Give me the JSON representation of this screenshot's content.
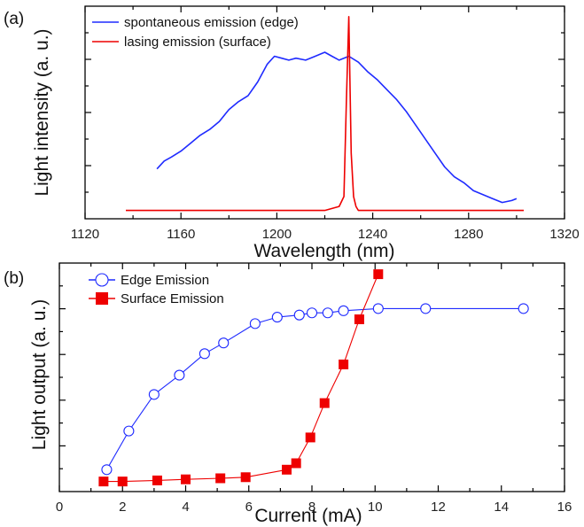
{
  "colors": {
    "blue": "#1f2bff",
    "red": "#ee0000",
    "axis": "#000000"
  },
  "chart_data": [
    {
      "panel": "(a)",
      "type": "line",
      "xlabel": "Wavelength (nm)",
      "ylabel": "Light intensity (a. u.)",
      "xlim": [
        1120,
        1320
      ],
      "ylim": [
        0,
        1.0
      ],
      "xticks": [
        1120,
        1160,
        1200,
        1240,
        1280,
        1320
      ],
      "yticks_unlabeled": true,
      "legend_position": "top-left",
      "series": [
        {
          "name": "spontaneous emission (edge)",
          "color": "#1f2bff",
          "x": [
            1150,
            1153,
            1156,
            1160,
            1164,
            1168,
            1172,
            1176,
            1180,
            1184,
            1188,
            1192,
            1196,
            1199,
            1202,
            1205,
            1208,
            1212,
            1216,
            1220,
            1223,
            1226,
            1230,
            1234,
            1238,
            1242,
            1246,
            1250,
            1254,
            1258,
            1262,
            1266,
            1270,
            1274,
            1278,
            1282,
            1286,
            1290,
            1294,
            1298,
            1300
          ],
          "values": [
            0.22,
            0.26,
            0.28,
            0.31,
            0.35,
            0.39,
            0.42,
            0.46,
            0.52,
            0.56,
            0.59,
            0.66,
            0.75,
            0.79,
            0.78,
            0.77,
            0.78,
            0.77,
            0.79,
            0.81,
            0.79,
            0.77,
            0.79,
            0.76,
            0.71,
            0.67,
            0.62,
            0.57,
            0.51,
            0.44,
            0.37,
            0.3,
            0.23,
            0.18,
            0.15,
            0.11,
            0.09,
            0.07,
            0.05,
            0.06,
            0.07
          ]
        },
        {
          "name": "lasing emission (surface)",
          "color": "#ee0000",
          "x": [
            1137,
            1150,
            1170,
            1190,
            1210,
            1220,
            1226,
            1228,
            1229,
            1230,
            1231,
            1232,
            1233,
            1234,
            1236,
            1250,
            1270,
            1290,
            1303
          ],
          "values": [
            0.01,
            0.01,
            0.01,
            0.01,
            0.01,
            0.01,
            0.03,
            0.08,
            0.55,
            0.99,
            0.3,
            0.08,
            0.03,
            0.01,
            0.01,
            0.01,
            0.01,
            0.01,
            0.01
          ]
        }
      ]
    },
    {
      "panel": "(b)",
      "type": "line",
      "xlabel": "Current (mA)",
      "ylabel": "Light output (a. u.)",
      "xlim": [
        0,
        16
      ],
      "ylim": [
        0,
        1.0
      ],
      "xticks": [
        0,
        2,
        4,
        6,
        8,
        10,
        12,
        14,
        16
      ],
      "yticks_unlabeled": true,
      "legend_position": "top-left",
      "series": [
        {
          "name": "Edge Emission",
          "color": "#1f2bff",
          "marker": "open-circle",
          "x": [
            1.5,
            2.2,
            3.0,
            3.8,
            4.6,
            5.2,
            6.2,
            6.9,
            7.6,
            8.0,
            8.5,
            9.0,
            10.1,
            11.6,
            14.7
          ],
          "values": [
            0.07,
            0.25,
            0.42,
            0.51,
            0.61,
            0.66,
            0.75,
            0.78,
            0.79,
            0.8,
            0.8,
            0.81,
            0.82,
            0.82,
            0.82
          ]
        },
        {
          "name": "Surface Emission",
          "color": "#ee0000",
          "marker": "filled-square",
          "x": [
            1.4,
            2.0,
            3.1,
            4.0,
            5.1,
            5.9,
            7.2,
            7.5,
            7.95,
            8.4,
            9.0,
            9.5,
            10.1
          ],
          "values": [
            0.015,
            0.015,
            0.02,
            0.025,
            0.03,
            0.035,
            0.07,
            0.1,
            0.22,
            0.38,
            0.56,
            0.77,
            0.98
          ]
        }
      ]
    }
  ]
}
